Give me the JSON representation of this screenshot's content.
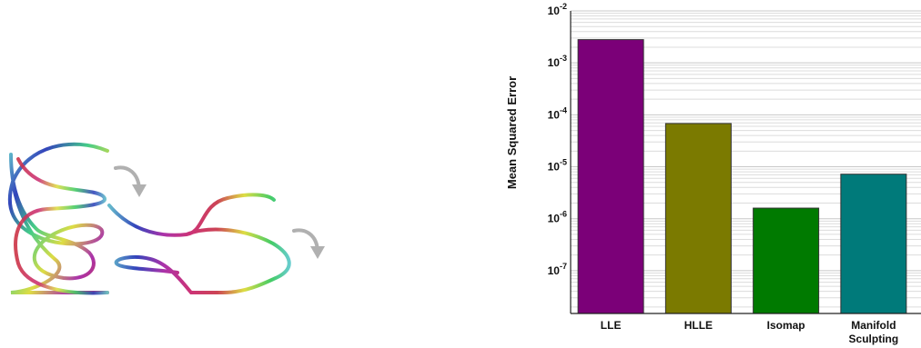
{
  "illustration": {
    "stage_1": "curled-manifold",
    "stage_2": "partially-unfolded-manifold",
    "stage_3": "flattened-manifold",
    "arrow_icon": "curved-arrow-icon",
    "stroke_gradient": [
      "#cc3344",
      "#dddd44",
      "#44cc66",
      "#3344bb",
      "#aa33aa",
      "#cc3377",
      "#66cccc"
    ],
    "arrow_color": "#b0b0b0"
  },
  "chart_data": {
    "type": "bar",
    "title": "",
    "xlabel": "",
    "ylabel": "Mean Squared Error",
    "yscale": "log",
    "ylim": [
      1.5e-08,
      0.01
    ],
    "grid": true,
    "legend": "none",
    "categories": [
      "LLE",
      "HLLE",
      "Isomap",
      "Manifold Sculpting"
    ],
    "category_lines": [
      [
        "LLE"
      ],
      [
        "HLLE"
      ],
      [
        "Isomap"
      ],
      [
        "Manifold",
        "Sculpting"
      ]
    ],
    "values": [
      0.0028,
      6.8e-05,
      1.6e-06,
      7.2e-06
    ],
    "colors": [
      "#7b0078",
      "#7b7a00",
      "#007a00",
      "#007a7a"
    ],
    "yticks": [
      {
        "value": 1e-07,
        "base": "10",
        "exp": "-7"
      },
      {
        "value": 1e-06,
        "base": "10",
        "exp": "-6"
      },
      {
        "value": 1e-05,
        "base": "10",
        "exp": "-5"
      },
      {
        "value": 0.0001,
        "base": "10",
        "exp": "-4"
      },
      {
        "value": 0.001,
        "base": "10",
        "exp": "-3"
      },
      {
        "value": 0.01,
        "base": "10",
        "exp": "-2"
      }
    ]
  }
}
